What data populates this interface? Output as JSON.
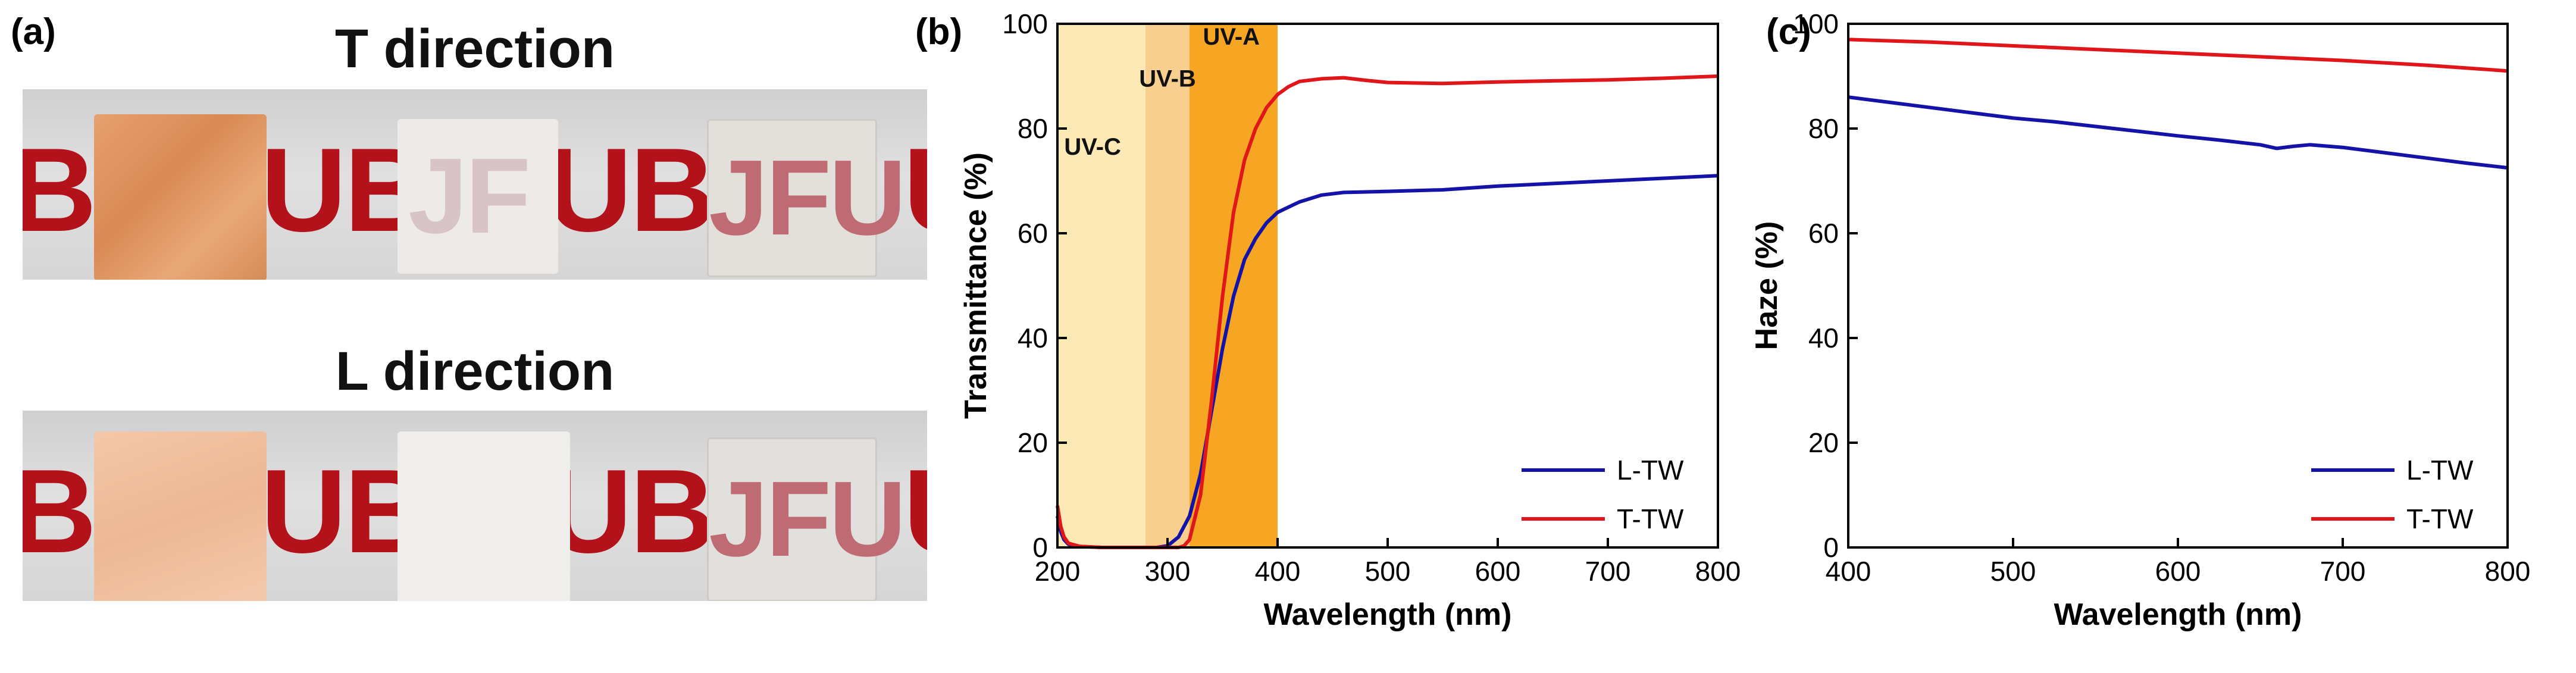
{
  "panels": {
    "a": {
      "label": "(a)"
    },
    "b": {
      "label": "(b)"
    },
    "c": {
      "label": "(c)"
    }
  },
  "photos": {
    "t_title": "T direction",
    "l_title": "L direction",
    "t_row_letters": [
      "B",
      "UB",
      "JF",
      "UB",
      "JFU"
    ],
    "l_row_letters": [
      "B",
      "UB",
      "",
      "UB",
      "JFU"
    ]
  },
  "chart_data": [
    {
      "type": "line",
      "panel": "b",
      "xlabel": "Wavelength (nm)",
      "ylabel": "Transmittance (%)",
      "xlim": [
        200,
        800
      ],
      "ylim": [
        0,
        100
      ],
      "xticks": [
        200,
        300,
        400,
        500,
        600,
        700,
        800
      ],
      "yticks": [
        0,
        20,
        40,
        60,
        80,
        100
      ],
      "grid": false,
      "legend": "bottom-right",
      "bands": [
        {
          "label": "UV-C",
          "range": [
            200,
            280
          ],
          "color": "#fde9b6"
        },
        {
          "label": "UV-B",
          "range": [
            280,
            320
          ],
          "color": "#f9cf8f"
        },
        {
          "label": "UV-A",
          "range": [
            320,
            400
          ],
          "color": "#f6a623"
        }
      ],
      "series": [
        {
          "name": "L-TW",
          "color": "#1313a8",
          "x": [
            200,
            203,
            206,
            210,
            220,
            240,
            260,
            280,
            290,
            300,
            310,
            320,
            330,
            340,
            350,
            360,
            370,
            380,
            390,
            400,
            420,
            440,
            460,
            500,
            550,
            600,
            650,
            700,
            750,
            800
          ],
          "y": [
            6,
            3,
            1.5,
            0.6,
            0.2,
            0,
            0,
            0,
            0,
            0.3,
            2,
            6,
            14,
            26,
            38,
            48,
            55,
            59,
            62,
            64,
            66,
            67.3,
            67.8,
            68,
            68.3,
            69,
            69.5,
            70,
            70.5,
            71
          ]
        },
        {
          "name": "T-TW",
          "color": "#e0161b",
          "x": [
            200,
            203,
            206,
            210,
            220,
            240,
            260,
            280,
            290,
            300,
            310,
            315,
            320,
            330,
            340,
            350,
            360,
            370,
            380,
            390,
            400,
            410,
            420,
            440,
            460,
            480,
            500,
            550,
            600,
            650,
            700,
            750,
            800
          ],
          "y": [
            8,
            4,
            2,
            0.8,
            0.2,
            0,
            0,
            0,
            0,
            0,
            0,
            0.3,
            1.5,
            10,
            28,
            48,
            64,
            74,
            80,
            84,
            86.5,
            88,
            89,
            89.5,
            89.7,
            89.2,
            88.8,
            88.6,
            88.9,
            89.1,
            89.3,
            89.6,
            90
          ]
        }
      ]
    },
    {
      "type": "line",
      "panel": "c",
      "xlabel": "Wavelength (nm)",
      "ylabel": "Haze (%)",
      "xlim": [
        400,
        800
      ],
      "ylim": [
        0,
        100
      ],
      "xticks": [
        400,
        500,
        600,
        700,
        800
      ],
      "yticks": [
        0,
        20,
        40,
        60,
        80,
        100
      ],
      "grid": false,
      "legend": "bottom-right",
      "series": [
        {
          "name": "L-TW",
          "color": "#1313a8",
          "x": [
            400,
            425,
            450,
            475,
            500,
            525,
            550,
            575,
            600,
            625,
            650,
            660,
            670,
            680,
            700,
            725,
            750,
            775,
            800
          ],
          "y": [
            86,
            85,
            84,
            83,
            82,
            81.3,
            80.4,
            79.5,
            78.6,
            77.8,
            76.9,
            76.2,
            76.6,
            76.9,
            76.4,
            75.4,
            74.4,
            73.4,
            72.5
          ]
        },
        {
          "name": "T-TW",
          "color": "#e0161b",
          "x": [
            400,
            450,
            500,
            550,
            600,
            650,
            700,
            750,
            800
          ],
          "y": [
            97,
            96.5,
            95.8,
            95.1,
            94.4,
            93.7,
            93,
            92.1,
            91
          ]
        }
      ]
    }
  ]
}
